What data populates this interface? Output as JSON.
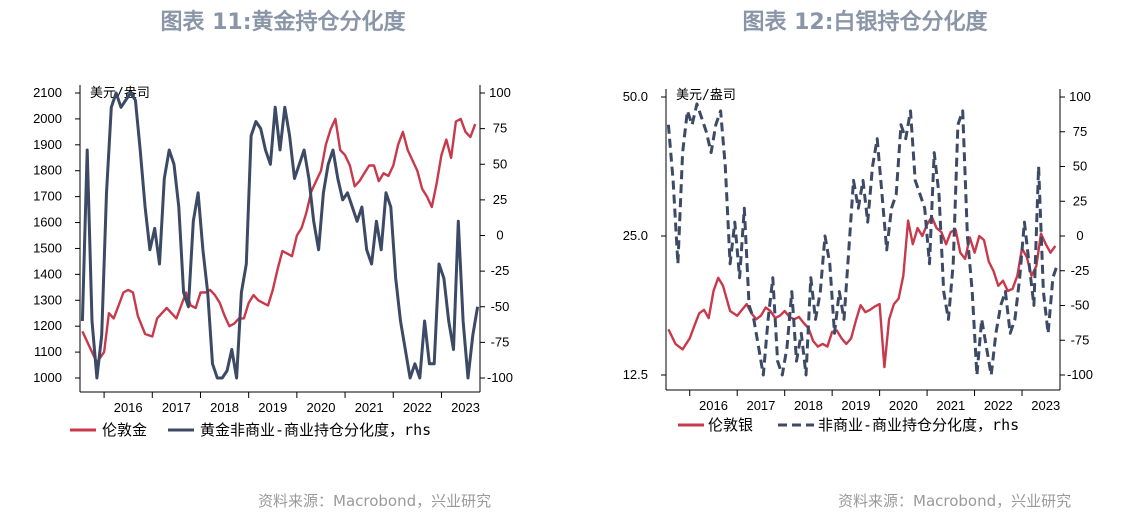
{
  "charts": [
    {
      "title": "图表 11:黄金持仓分化度",
      "source": "资料来源：Macrobond，兴业研究"
    },
    {
      "title": "图表 12:白银持仓分化度",
      "source": "资料来源：Macrobond，兴业研究"
    }
  ],
  "chart_data": [
    {
      "type": "line",
      "title": "图表 11:黄金持仓分化度",
      "unit_label": "美元/盎司",
      "y_left": {
        "ylim": [
          1000,
          2100
        ],
        "ticks": [
          "1000",
          "1100",
          "1200",
          "1300",
          "1400",
          "1500",
          "1600",
          "1700",
          "1800",
          "1900",
          "2000",
          "2100"
        ]
      },
      "y_right": {
        "ylim": [
          -100,
          100
        ],
        "ticks": [
          "-100",
          "-75",
          "-50",
          "-25",
          "0",
          "25",
          "50",
          "75",
          "100"
        ]
      },
      "x": {
        "range": [
          2015.5,
          2023.8
        ],
        "ticks": [
          "2016",
          "2017",
          "2018",
          "2019",
          "2020",
          "2021",
          "2022",
          "2023"
        ]
      },
      "grid": false,
      "legend_position": "bottom",
      "colors": {
        "price": "#c8394b",
        "positioning": "#3c4a66"
      },
      "series": [
        {
          "name": "伦敦金",
          "axis": "left",
          "style": "solid",
          "x": [
            2015.55,
            2015.7,
            2015.85,
            2016.0,
            2016.1,
            2016.2,
            2016.3,
            2016.4,
            2016.5,
            2016.6,
            2016.7,
            2016.85,
            2017.0,
            2017.1,
            2017.2,
            2017.3,
            2017.4,
            2017.5,
            2017.6,
            2017.7,
            2017.8,
            2017.9,
            2018.0,
            2018.1,
            2018.2,
            2018.3,
            2018.4,
            2018.5,
            2018.6,
            2018.7,
            2018.8,
            2018.9,
            2019.0,
            2019.1,
            2019.2,
            2019.3,
            2019.4,
            2019.5,
            2019.6,
            2019.7,
            2019.8,
            2019.9,
            2020.0,
            2020.1,
            2020.2,
            2020.3,
            2020.4,
            2020.5,
            2020.6,
            2020.7,
            2020.8,
            2020.9,
            2021.0,
            2021.1,
            2021.2,
            2021.3,
            2021.4,
            2021.5,
            2021.6,
            2021.7,
            2021.8,
            2021.9,
            2022.0,
            2022.1,
            2022.2,
            2022.3,
            2022.4,
            2022.5,
            2022.6,
            2022.7,
            2022.8,
            2022.9,
            2023.0,
            2023.1,
            2023.2,
            2023.3,
            2023.4,
            2023.5,
            2023.6,
            2023.7
          ],
          "values": [
            1180,
            1120,
            1060,
            1100,
            1250,
            1230,
            1280,
            1330,
            1340,
            1330,
            1240,
            1170,
            1160,
            1230,
            1250,
            1270,
            1250,
            1230,
            1280,
            1330,
            1280,
            1270,
            1330,
            1330,
            1340,
            1320,
            1290,
            1240,
            1200,
            1210,
            1230,
            1230,
            1290,
            1320,
            1300,
            1290,
            1280,
            1340,
            1420,
            1490,
            1480,
            1470,
            1550,
            1580,
            1640,
            1720,
            1760,
            1800,
            1900,
            1960,
            2000,
            1880,
            1860,
            1820,
            1740,
            1760,
            1790,
            1820,
            1820,
            1760,
            1790,
            1780,
            1820,
            1900,
            1950,
            1880,
            1840,
            1800,
            1730,
            1700,
            1660,
            1750,
            1860,
            1920,
            1850,
            1990,
            2000,
            1950,
            1930,
            1980
          ]
        },
        {
          "name": "黄金非商业-商业持仓分化度，rhs",
          "axis": "right",
          "style": "solid",
          "x": [
            2015.55,
            2015.65,
            2015.75,
            2015.85,
            2015.95,
            2016.05,
            2016.15,
            2016.25,
            2016.35,
            2016.45,
            2016.55,
            2016.65,
            2016.75,
            2016.85,
            2016.95,
            2017.05,
            2017.15,
            2017.25,
            2017.35,
            2017.45,
            2017.55,
            2017.65,
            2017.75,
            2017.85,
            2017.95,
            2018.05,
            2018.15,
            2018.25,
            2018.35,
            2018.45,
            2018.55,
            2018.65,
            2018.75,
            2018.85,
            2018.95,
            2019.05,
            2019.15,
            2019.25,
            2019.35,
            2019.45,
            2019.55,
            2019.65,
            2019.75,
            2019.85,
            2019.95,
            2020.05,
            2020.15,
            2020.25,
            2020.35,
            2020.45,
            2020.55,
            2020.65,
            2020.75,
            2020.85,
            2020.95,
            2021.05,
            2021.15,
            2021.25,
            2021.35,
            2021.45,
            2021.55,
            2021.65,
            2021.75,
            2021.85,
            2021.95,
            2022.05,
            2022.15,
            2022.25,
            2022.35,
            2022.45,
            2022.55,
            2022.65,
            2022.75,
            2022.85,
            2022.95,
            2023.05,
            2023.15,
            2023.25,
            2023.35,
            2023.45,
            2023.55,
            2023.65,
            2023.75
          ],
          "values": [
            -60,
            60,
            -60,
            -100,
            -70,
            30,
            90,
            100,
            90,
            95,
            100,
            95,
            60,
            20,
            -10,
            5,
            -20,
            40,
            60,
            50,
            20,
            -40,
            -50,
            10,
            30,
            -10,
            -40,
            -90,
            -100,
            -100,
            -95,
            -80,
            -100,
            -40,
            -20,
            70,
            80,
            75,
            60,
            50,
            90,
            60,
            90,
            70,
            40,
            50,
            60,
            40,
            10,
            -10,
            30,
            50,
            60,
            40,
            25,
            30,
            20,
            10,
            20,
            -10,
            -20,
            10,
            -10,
            30,
            20,
            -30,
            -60,
            -80,
            -100,
            -90,
            -100,
            -60,
            -90,
            -90,
            -20,
            -30,
            -60,
            -80,
            10,
            -60,
            -100,
            -70,
            -50
          ]
        }
      ]
    },
    {
      "type": "line",
      "title": "图表 12:白银持仓分化度",
      "unit_label": "美元/盎司",
      "y_left": {
        "scale": "log",
        "ylim": [
          12.5,
          50.0
        ],
        "ticks": [
          "12.5",
          "25.0",
          "50.0"
        ]
      },
      "y_right": {
        "ylim": [
          -100,
          100
        ],
        "ticks": [
          "-100",
          "-75",
          "-50",
          "-25",
          "0",
          "25",
          "50",
          "75",
          "100"
        ]
      },
      "x": {
        "range": [
          2015.5,
          2023.8
        ],
        "ticks": [
          "2016",
          "2017",
          "2018",
          "2019",
          "2020",
          "2021",
          "2022",
          "2023"
        ]
      },
      "grid": false,
      "legend_position": "bottom",
      "colors": {
        "price": "#c8394b",
        "positioning": "#3c4a66"
      },
      "series": [
        {
          "name": "伦敦银",
          "axis": "left",
          "style": "solid",
          "x": [
            2015.55,
            2015.7,
            2015.85,
            2016.0,
            2016.1,
            2016.2,
            2016.3,
            2016.4,
            2016.5,
            2016.6,
            2016.7,
            2016.85,
            2017.0,
            2017.1,
            2017.2,
            2017.3,
            2017.4,
            2017.5,
            2017.6,
            2017.7,
            2017.8,
            2017.9,
            2018.0,
            2018.1,
            2018.2,
            2018.3,
            2018.4,
            2018.5,
            2018.6,
            2018.7,
            2018.8,
            2018.9,
            2019.0,
            2019.1,
            2019.2,
            2019.3,
            2019.4,
            2019.5,
            2019.6,
            2019.7,
            2019.8,
            2019.9,
            2020.0,
            2020.1,
            2020.2,
            2020.3,
            2020.4,
            2020.5,
            2020.6,
            2020.7,
            2020.8,
            2020.9,
            2021.0,
            2021.1,
            2021.2,
            2021.3,
            2021.4,
            2021.5,
            2021.6,
            2021.7,
            2021.8,
            2021.9,
            2022.0,
            2022.1,
            2022.2,
            2022.3,
            2022.4,
            2022.5,
            2022.6,
            2022.7,
            2022.8,
            2022.9,
            2023.0,
            2023.1,
            2023.2,
            2023.3,
            2023.4,
            2023.5,
            2023.6,
            2023.7
          ],
          "values": [
            15.7,
            14.6,
            14.2,
            15.0,
            16.0,
            17.0,
            17.3,
            16.6,
            19.0,
            20.3,
            19.5,
            17.2,
            16.8,
            17.3,
            17.8,
            17.0,
            16.5,
            16.8,
            17.5,
            17.2,
            16.6,
            16.8,
            17.2,
            16.7,
            16.5,
            16.7,
            16.2,
            15.8,
            14.8,
            14.4,
            14.6,
            14.4,
            15.5,
            15.6,
            15.0,
            14.6,
            15.0,
            16.4,
            17.7,
            17.1,
            17.3,
            17.6,
            17.8,
            13.0,
            16.5,
            17.8,
            18.3,
            20.5,
            27.0,
            24.0,
            26.0,
            25.0,
            26.5,
            27.5,
            26.0,
            25.5,
            24.0,
            25.5,
            25.8,
            23.0,
            22.3,
            24.8,
            23.0,
            25.0,
            24.5,
            22.0,
            21.0,
            19.5,
            20.0,
            19.0,
            19.2,
            20.5,
            23.5,
            22.5,
            20.5,
            21.5,
            25.3,
            24.0,
            23.0,
            23.8
          ]
        },
        {
          "name": "非商业-商业持仓分化度，rhs",
          "axis": "right",
          "style": "dashed",
          "x": [
            2015.55,
            2015.65,
            2015.75,
            2015.85,
            2015.95,
            2016.05,
            2016.15,
            2016.25,
            2016.35,
            2016.45,
            2016.55,
            2016.65,
            2016.75,
            2016.85,
            2016.95,
            2017.05,
            2017.15,
            2017.25,
            2017.35,
            2017.45,
            2017.55,
            2017.65,
            2017.75,
            2017.85,
            2017.95,
            2018.05,
            2018.15,
            2018.25,
            2018.35,
            2018.45,
            2018.55,
            2018.65,
            2018.75,
            2018.85,
            2018.95,
            2019.05,
            2019.15,
            2019.25,
            2019.35,
            2019.45,
            2019.55,
            2019.65,
            2019.75,
            2019.85,
            2019.95,
            2020.05,
            2020.15,
            2020.25,
            2020.35,
            2020.45,
            2020.55,
            2020.65,
            2020.75,
            2020.85,
            2020.95,
            2021.05,
            2021.15,
            2021.25,
            2021.35,
            2021.45,
            2021.55,
            2021.65,
            2021.75,
            2021.85,
            2021.95,
            2022.05,
            2022.15,
            2022.25,
            2022.35,
            2022.45,
            2022.55,
            2022.65,
            2022.75,
            2022.85,
            2022.95,
            2023.05,
            2023.15,
            2023.25,
            2023.35,
            2023.45,
            2023.55,
            2023.65,
            2023.75
          ],
          "values": [
            80,
            40,
            -20,
            60,
            90,
            80,
            95,
            85,
            75,
            60,
            80,
            90,
            50,
            -20,
            10,
            -30,
            20,
            -50,
            -60,
            -80,
            -100,
            -60,
            -30,
            -90,
            -100,
            -80,
            -40,
            -90,
            -70,
            -100,
            -30,
            -60,
            -40,
            0,
            -20,
            -70,
            -40,
            -60,
            -10,
            40,
            20,
            40,
            10,
            50,
            70,
            30,
            -10,
            20,
            30,
            80,
            70,
            90,
            40,
            30,
            20,
            -20,
            60,
            30,
            -40,
            -60,
            -20,
            80,
            90,
            0,
            -40,
            -100,
            -60,
            -80,
            -100,
            -70,
            -50,
            -40,
            -70,
            -60,
            -30,
            10,
            -20,
            -50,
            50,
            -40,
            -70,
            -30,
            -20
          ]
        }
      ]
    }
  ]
}
